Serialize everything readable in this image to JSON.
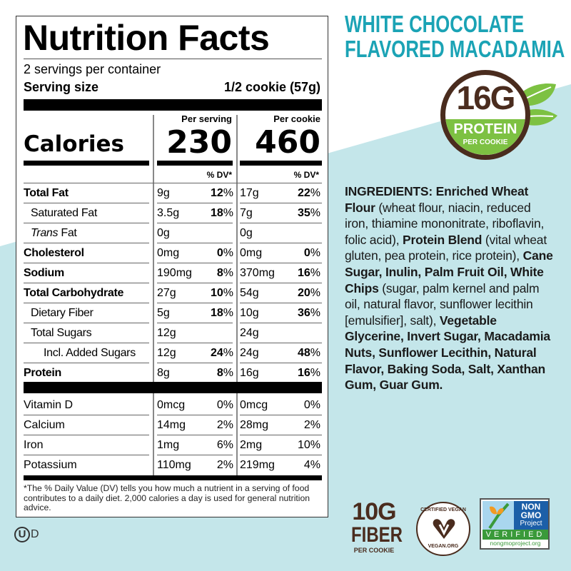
{
  "colors": {
    "teal": "#1ba3b5",
    "brown": "#4a2c1e",
    "green": "#7dc142",
    "background": "#c4e6ea"
  },
  "header": {
    "flavor_line1": "WHITE CHOCOLATE",
    "flavor_line2": "FLAVORED MACADAMIA"
  },
  "protein_badge": {
    "amount": "16G",
    "label": "PROTEIN",
    "sub": "PER COOKIE",
    "icon": "leaf-icon"
  },
  "label": {
    "title": "Nutrition Facts",
    "servings": "2 servings per container",
    "serving_size_label": "Serving size",
    "serving_size_value": "1/2 cookie (57g)",
    "per_serving": "Per serving",
    "per_cookie": "Per cookie",
    "calories_label": "Calories",
    "calories_serving": "230",
    "calories_cookie": "460",
    "dv_header": "% DV*",
    "nutrients": [
      {
        "name": "Total Fat",
        "bold": true,
        "indent": 0,
        "s_amt": "9g",
        "s_dv": "12",
        "c_amt": "17g",
        "c_dv": "22"
      },
      {
        "name": "Saturated Fat",
        "bold": false,
        "indent": 1,
        "s_amt": "3.5g",
        "s_dv": "18",
        "c_amt": "7g",
        "c_dv": "35"
      },
      {
        "name": "Trans Fat",
        "bold": false,
        "indent": 1,
        "s_amt": "0g",
        "s_dv": "",
        "c_amt": "0g",
        "c_dv": ""
      },
      {
        "name": "Cholesterol",
        "bold": true,
        "indent": 0,
        "s_amt": "0mg",
        "s_dv": "0",
        "c_amt": "0mg",
        "c_dv": "0"
      },
      {
        "name": "Sodium",
        "bold": true,
        "indent": 0,
        "s_amt": "190mg",
        "s_dv": "8",
        "c_amt": "370mg",
        "c_dv": "16"
      },
      {
        "name": "Total Carbohydrate",
        "bold": true,
        "indent": 0,
        "s_amt": "27g",
        "s_dv": "10",
        "c_amt": "54g",
        "c_dv": "20"
      },
      {
        "name": "Dietary Fiber",
        "bold": false,
        "indent": 1,
        "s_amt": "5g",
        "s_dv": "18",
        "c_amt": "10g",
        "c_dv": "36"
      },
      {
        "name": "Total Sugars",
        "bold": false,
        "indent": 1,
        "s_amt": "12g",
        "s_dv": "",
        "c_amt": "24g",
        "c_dv": ""
      },
      {
        "name": "Incl. Added Sugars",
        "bold": false,
        "indent": 2,
        "s_amt": "12g",
        "s_dv": "24",
        "c_amt": "24g",
        "c_dv": "48"
      },
      {
        "name": "Protein",
        "bold": true,
        "indent": 0,
        "s_amt": "8g",
        "s_dv": "8",
        "c_amt": "16g",
        "c_dv": "16"
      }
    ],
    "vitamins": [
      {
        "name": "Vitamin D",
        "s_amt": "0mcg",
        "s_dv": "0%",
        "c_amt": "0mcg",
        "c_dv": "0%"
      },
      {
        "name": "Calcium",
        "s_amt": "14mg",
        "s_dv": "2%",
        "c_amt": "28mg",
        "c_dv": "2%"
      },
      {
        "name": "Iron",
        "s_amt": "1mg",
        "s_dv": "6%",
        "c_amt": "2mg",
        "c_dv": "10%"
      },
      {
        "name": "Potassium",
        "s_amt": "110mg",
        "s_dv": "2%",
        "c_amt": "219mg",
        "c_dv": "4%"
      }
    ],
    "footnote": "*The % Daily Value (DV) tells you how much a nutrient in a serving of food contributes to a daily diet. 2,000 calories a day is used for general nutrition advice."
  },
  "kosher": {
    "symbol": "U",
    "suffix": "D"
  },
  "ingredients": [
    {
      "t": "INGREDIENTS: Enriched Wheat Flour",
      "b": true
    },
    {
      "t": " (wheat flour, niacin, reduced iron, thiamine mononitrate, riboflavin, folic acid), ",
      "b": false
    },
    {
      "t": "Protein Blend",
      "b": true
    },
    {
      "t": " (vital wheat gluten, pea protein, rice protein), ",
      "b": false
    },
    {
      "t": "Cane Sugar, Inulin, Palm Fruit Oil, White Chips",
      "b": true
    },
    {
      "t": " (sugar, palm kernel and palm oil, natural flavor, sunflower lecithin [emulsifier], salt), ",
      "b": false
    },
    {
      "t": "Vegetable Glycerine, Invert Sugar, Macadamia Nuts, Sunflower Lecithin, Natural Flavor, Baking Soda, Salt, Xanthan Gum, Guar Gum.",
      "b": true
    }
  ],
  "fiber_badge": {
    "amount": "10G",
    "label": "FIBER",
    "sub": "PER COOKIE"
  },
  "vegan_seal": {
    "top": "CERTIFIED VEGAN",
    "bottom": "VEGAN.ORG"
  },
  "nongmo_seal": {
    "line1": "NON",
    "line2": "GMO",
    "line3": "Project",
    "verified": "VERIFIED",
    "url": "nongmoproject.org"
  }
}
